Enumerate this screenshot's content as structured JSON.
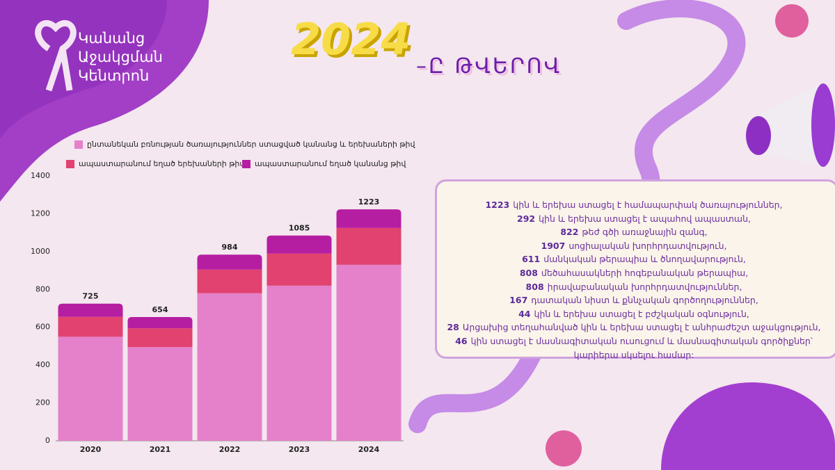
{
  "logo": {
    "lines": [
      "Կանանց",
      "Աջակցման",
      "Կենտրոն"
    ]
  },
  "heading": {
    "year": "2024",
    "suffix": "–Ը ԹՎԵՐՈՎ"
  },
  "chart_data": {
    "type": "stacked_bar",
    "categories": [
      "2020",
      "2021",
      "2022",
      "2023",
      "2024"
    ],
    "series": [
      {
        "name": "ընտանեկան բռնության ծառայություններ ստացված կանանց և երեխաների թիվ",
        "color": "#e581cb",
        "values": [
          550,
          495,
          780,
          820,
          930
        ]
      },
      {
        "name": "ապաստարանում եղած երեխաների թիվ",
        "color": "#e1426f",
        "values": [
          105,
          100,
          125,
          170,
          195
        ]
      },
      {
        "name": "ապաստարանում եղած կանանց թիվ",
        "color": "#b61ea2",
        "values": [
          70,
          59,
          79,
          95,
          98
        ]
      }
    ],
    "totals": [
      725,
      654,
      984,
      1085,
      1223
    ],
    "ylim": [
      0,
      1400
    ],
    "yticks": [
      0,
      200,
      400,
      600,
      800,
      1000,
      1200,
      1400
    ],
    "grid": false
  },
  "stats": [
    {
      "value": "1223",
      "text": "կին և երեխա ստացել է համապարփակ ծառայություններ,"
    },
    {
      "value": "292",
      "text": "կին և երեխա ստացել է ապահով ապաստան,"
    },
    {
      "value": "822",
      "text": "թեժ գծի առաջնային զանգ,"
    },
    {
      "value": "1907",
      "text": "սոցիալական խորհրդատվություն,"
    },
    {
      "value": "611",
      "text": "մանկական թերապիա և ծնողավարություն,"
    },
    {
      "value": "808",
      "text": "մեծահասակների հոգեբանական թերապիա,"
    },
    {
      "value": "808",
      "text": "իրավաբանական խորհրդատվություններ,"
    },
    {
      "value": "167",
      "text": "դատական նիստ և քննչական գործողություններ,"
    },
    {
      "value": "44",
      "text": "կին և երեխա ստացել է բժշկական օգնություն,"
    },
    {
      "value": "28",
      "text": "Արցախից տեղահանված կին և երեխա  ստացել է անհրաժեշտ աջակցություն,"
    },
    {
      "value": "46",
      "text": "կին ստացել է մասնագիտական ուսուցում և մասնագիտական գործիքներ՝ կարիերա սկսելու համար:"
    }
  ]
}
